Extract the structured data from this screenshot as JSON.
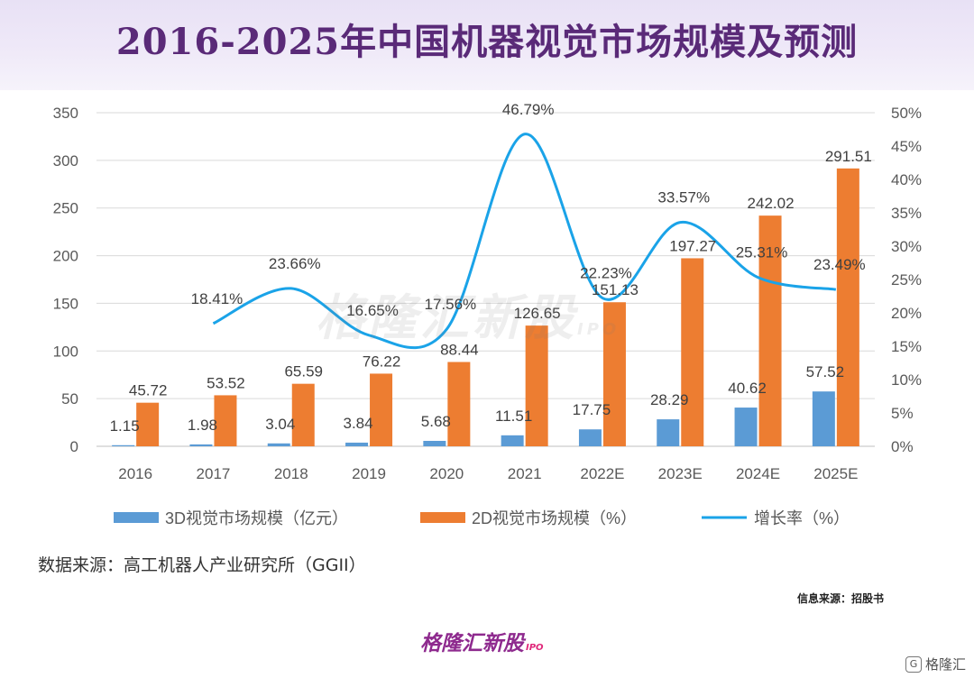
{
  "title": "2016-2025年中国机器视觉市场规模及预测",
  "source_note": "数据来源：高工机器人产业研究所（GGII）",
  "info_note": "信息来源：招股书",
  "brand": {
    "name": "格隆汇新股",
    "sub": "IPO"
  },
  "watermark": {
    "name": "格隆汇新股",
    "sub": "IPO"
  },
  "corner_brand": {
    "icon": "G",
    "text": "格隆汇"
  },
  "colors": {
    "bar3d": "#5b9bd5",
    "bar2d": "#ed7d31",
    "line": "#1aa3e8",
    "title": "#5a2a78"
  },
  "chart_data": {
    "type": "bar",
    "title": "2016-2025年中国机器视觉市场规模及预测",
    "categories": [
      "2016",
      "2017",
      "2018",
      "2019",
      "2020",
      "2021",
      "2022E",
      "2023E",
      "2024E",
      "2025E"
    ],
    "series": [
      {
        "name": "3D视觉市场规模（亿元）",
        "type": "bar",
        "axis": "left",
        "values": [
          1.15,
          1.98,
          3.04,
          3.84,
          5.68,
          11.51,
          17.75,
          28.29,
          40.62,
          57.52
        ],
        "labels": [
          "1.15",
          "1.98",
          "3.04",
          "3.84",
          "5.68",
          "11.51",
          "17.75",
          "28.29",
          "40.62",
          "57.52"
        ]
      },
      {
        "name": "2D视觉市场规模（%）",
        "type": "bar",
        "axis": "left",
        "values": [
          45.72,
          53.52,
          65.59,
          76.22,
          88.44,
          126.65,
          151.13,
          197.27,
          242.02,
          291.51
        ],
        "labels": [
          "45.72",
          "53.52",
          "65.59",
          "76.22",
          "88.44",
          "126.65",
          "151.13",
          "197.27",
          "242.02",
          "291.51"
        ]
      },
      {
        "name": "增长率（%）",
        "type": "line",
        "axis": "right",
        "values": [
          null,
          18.41,
          23.66,
          16.65,
          17.56,
          46.79,
          22.23,
          33.57,
          25.31,
          23.49
        ],
        "labels": [
          "",
          "18.41%",
          "23.66%",
          "16.65%",
          "17.56%",
          "46.79%",
          "22.23%",
          "33.57%",
          "25.31%",
          "23.49%"
        ]
      }
    ],
    "y_left": {
      "min": 0,
      "max": 350,
      "ticks": [
        "0",
        "50",
        "100",
        "150",
        "200",
        "250",
        "300",
        "350"
      ]
    },
    "y_right": {
      "min": 0,
      "max": 50,
      "ticks": [
        "0%",
        "5%",
        "10%",
        "15%",
        "20%",
        "25%",
        "30%",
        "35%",
        "40%",
        "45%",
        "50%"
      ]
    },
    "grid": true,
    "legend": "bottom"
  }
}
